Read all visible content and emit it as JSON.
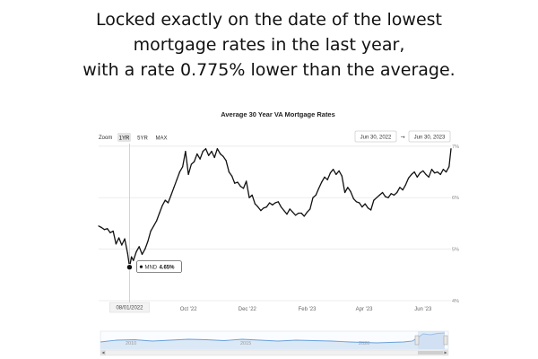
{
  "headline": {
    "line1": "Locked exactly on the date of the lowest",
    "line2": "mortgage rates in the last year,",
    "line3": "with a rate 0.775% lower than the average."
  },
  "controls": {
    "zoom_label": "Zoom",
    "zoom_buttons": [
      "1YR",
      "5YR",
      "MAX"
    ],
    "zoom_selected": "1YR",
    "date_from": "Jun 30, 2022",
    "date_sep": "→",
    "date_to": "Jun 30, 2023"
  },
  "colors": {
    "line": "#111111",
    "grid": "#e6e6e6",
    "navigator_line": "#6aa0d8",
    "navigator_fill": "#dbe8f6",
    "navigator_selection": "#c9dbf0"
  },
  "chart_data": {
    "type": "line",
    "title": "Average 30 Year VA Mortgage Rates",
    "x_range": [
      "2022-06-30",
      "2023-06-30"
    ],
    "x_ticks": [
      "Oct '22",
      "Dec '22",
      "Feb '23",
      "Apr '23",
      "Jun '23"
    ],
    "x_tick_dates": [
      "2022-10-01",
      "2022-12-01",
      "2023-02-01",
      "2023-04-01",
      "2023-06-01"
    ],
    "y_ticks": [
      "7%",
      "6%",
      "5%",
      "4%"
    ],
    "y_tick_values": [
      7,
      6,
      5,
      4
    ],
    "ylim": [
      4,
      7.05
    ],
    "grid": true,
    "tooltip": {
      "label": "MND",
      "value": "4.65%"
    },
    "crosshair_label": "08/01/2022",
    "highlight_point": {
      "date": "2022-08-01",
      "value": 4.65
    },
    "series": [
      {
        "x": [
          "2022-06-30",
          "2022-07-03",
          "2022-07-06",
          "2022-07-09",
          "2022-07-12",
          "2022-07-15",
          "2022-07-18",
          "2022-07-21",
          "2022-07-24",
          "2022-07-27",
          "2022-07-30",
          "2022-08-01",
          "2022-08-03",
          "2022-08-05",
          "2022-08-08",
          "2022-08-11",
          "2022-08-14",
          "2022-08-17",
          "2022-08-20",
          "2022-08-23",
          "2022-08-26",
          "2022-08-29",
          "2022-09-01",
          "2022-09-04",
          "2022-09-07",
          "2022-09-10",
          "2022-09-13",
          "2022-09-16",
          "2022-09-19",
          "2022-09-22",
          "2022-09-25",
          "2022-09-28",
          "2022-10-01",
          "2022-10-04",
          "2022-10-07",
          "2022-10-10",
          "2022-10-13",
          "2022-10-16",
          "2022-10-19",
          "2022-10-22",
          "2022-10-25",
          "2022-10-28",
          "2022-10-31",
          "2022-11-03",
          "2022-11-06",
          "2022-11-09",
          "2022-11-12",
          "2022-11-15",
          "2022-11-18",
          "2022-11-21",
          "2022-11-24",
          "2022-11-27",
          "2022-11-30",
          "2022-12-03",
          "2022-12-06",
          "2022-12-09",
          "2022-12-12",
          "2022-12-15",
          "2022-12-18",
          "2022-12-21",
          "2022-12-24",
          "2022-12-27",
          "2022-12-30",
          "2023-01-02",
          "2023-01-05",
          "2023-01-08",
          "2023-01-11",
          "2023-01-14",
          "2023-01-17",
          "2023-01-20",
          "2023-01-23",
          "2023-01-26",
          "2023-01-29",
          "2023-02-01",
          "2023-02-04",
          "2023-02-07",
          "2023-02-10",
          "2023-02-13",
          "2023-02-16",
          "2023-02-19",
          "2023-02-22",
          "2023-02-25",
          "2023-02-28",
          "2023-03-03",
          "2023-03-06",
          "2023-03-09",
          "2023-03-12",
          "2023-03-15",
          "2023-03-18",
          "2023-03-21",
          "2023-03-24",
          "2023-03-27",
          "2023-03-30",
          "2023-04-02",
          "2023-04-05",
          "2023-04-08",
          "2023-04-11",
          "2023-04-14",
          "2023-04-17",
          "2023-04-20",
          "2023-04-23",
          "2023-04-26",
          "2023-04-29",
          "2023-05-02",
          "2023-05-05",
          "2023-05-08",
          "2023-05-11",
          "2023-05-14",
          "2023-05-17",
          "2023-05-20",
          "2023-05-23",
          "2023-05-26",
          "2023-05-29",
          "2023-06-01",
          "2023-06-04",
          "2023-06-07",
          "2023-06-10",
          "2023-06-13",
          "2023-06-16",
          "2023-06-19",
          "2023-06-22",
          "2023-06-25",
          "2023-06-28",
          "2023-06-30"
        ],
        "y": [
          5.45,
          5.42,
          5.38,
          5.4,
          5.32,
          5.35,
          5.1,
          5.22,
          5.08,
          5.2,
          4.92,
          4.65,
          4.85,
          4.78,
          4.95,
          5.05,
          4.9,
          5.0,
          5.15,
          5.35,
          5.45,
          5.55,
          5.7,
          5.85,
          5.95,
          5.9,
          6.05,
          6.2,
          6.35,
          6.5,
          6.6,
          6.9,
          6.45,
          6.65,
          6.7,
          6.85,
          6.75,
          6.9,
          6.95,
          6.82,
          6.9,
          6.78,
          6.95,
          6.85,
          6.8,
          6.72,
          6.5,
          6.42,
          6.28,
          6.3,
          6.22,
          6.18,
          6.32,
          6.0,
          6.05,
          5.88,
          5.82,
          5.75,
          5.8,
          5.82,
          5.9,
          5.86,
          5.9,
          5.92,
          5.82,
          5.75,
          5.68,
          5.78,
          5.72,
          5.66,
          5.7,
          5.7,
          5.64,
          5.72,
          5.78,
          6.0,
          6.05,
          6.18,
          6.3,
          6.4,
          6.35,
          6.48,
          6.55,
          6.45,
          6.52,
          6.42,
          6.1,
          6.2,
          6.12,
          5.98,
          5.92,
          5.9,
          5.82,
          5.88,
          5.8,
          5.76,
          5.95,
          6.0,
          6.05,
          6.1,
          6.02,
          6.0,
          6.08,
          6.05,
          6.1,
          6.2,
          6.15,
          6.25,
          6.38,
          6.45,
          6.5,
          6.4,
          6.48,
          6.52,
          6.45,
          6.4,
          6.55,
          6.48,
          6.5,
          6.45,
          6.55,
          6.5,
          6.6,
          6.95
        ]
      }
    ],
    "navigator": {
      "x_labels": [
        "2010",
        "2015",
        "2020"
      ]
    }
  }
}
